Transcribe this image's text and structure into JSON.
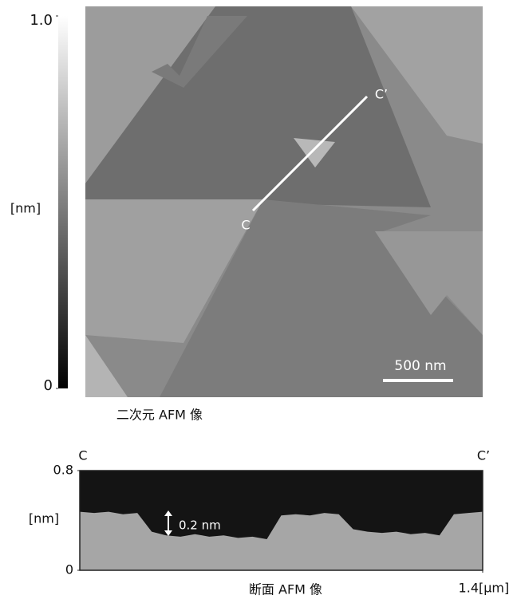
{
  "chart_data": [
    {
      "type": "image",
      "caption": "二次元 AFM 像",
      "colorbar_label": "[nm]",
      "clim": [
        0,
        1
      ],
      "cticks": [
        0,
        {
          "value": 1,
          "label": "1.0"
        }
      ],
      "annotations": [
        "C",
        "C’",
        "500 nm"
      ]
    },
    {
      "type": "area",
      "caption": "断面 AFM 像",
      "start_label": "C",
      "end_label": "C’",
      "ylabel": "[nm]",
      "xunit": "[μm]",
      "annotation": "0.2 nm",
      "x": [
        0,
        0.05,
        0.1,
        0.15,
        0.2,
        0.25,
        0.3,
        0.35,
        0.4,
        0.45,
        0.5,
        0.55,
        0.6,
        0.65,
        0.7,
        0.75,
        0.8,
        0.85,
        0.9,
        0.95,
        1.0,
        1.05,
        1.1,
        1.15,
        1.2,
        1.25,
        1.3,
        1.35,
        1.4
      ],
      "values": [
        0.47,
        0.46,
        0.47,
        0.45,
        0.46,
        0.31,
        0.28,
        0.27,
        0.29,
        0.27,
        0.28,
        0.26,
        0.27,
        0.25,
        0.44,
        0.45,
        0.44,
        0.46,
        0.45,
        0.33,
        0.31,
        0.3,
        0.31,
        0.29,
        0.3,
        0.28,
        0.45,
        0.46,
        0.47
      ],
      "xlim": [
        0,
        1.4
      ],
      "xticks": [
        1.4
      ],
      "ylim": [
        0,
        0.8
      ],
      "yticks": [
        0,
        0.8
      ],
      "color": "#a6a6a6",
      "background": "#141414"
    }
  ]
}
